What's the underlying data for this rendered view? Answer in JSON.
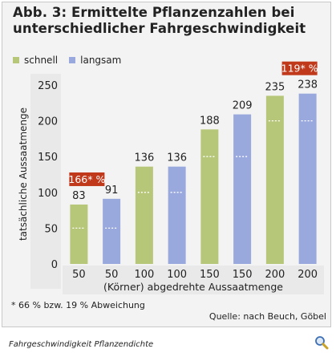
{
  "title": "Abb. 3: Ermittelte Pflanzenzahlen bei unterschiedlicher Fahrgeschwindigkeit",
  "legend": [
    {
      "label": "schnell",
      "color": "#b7c77a"
    },
    {
      "label": "langsam",
      "color": "#9aa9dd"
    }
  ],
  "footnote": "* 66 % bzw. 19 % Abweichung",
  "source": "Quelle: nach Beuch, Göbel",
  "caption": "Fahrgeschwindigkeit Pflanzendichte",
  "icons": {
    "zoom": "magnifier-icon"
  },
  "colors": {
    "frame_bg": "#f3f3f3",
    "axis_bg": "#e9e9e9",
    "annotation": "#c0391b"
  },
  "chart_data": {
    "type": "bar",
    "title": "Abb. 3: Ermittelte Pflanzenzahlen bei unterschiedlicher Fahrgeschwindigkeit",
    "xlabel": "(Körner) abgedrehte Aussaatmenge",
    "ylabel": "tatsächliche Aussaatmenge",
    "ylim": [
      0,
      250
    ],
    "yticks": [
      0,
      50,
      100,
      150,
      200,
      250
    ],
    "categories": [
      "50",
      "50",
      "100",
      "100",
      "150",
      "150",
      "200",
      "200"
    ],
    "series": [
      {
        "name": "schnell",
        "color": "#b7c77a",
        "values": [
          83,
          null,
          136,
          null,
          188,
          null,
          235,
          null
        ]
      },
      {
        "name": "langsam",
        "color": "#9aa9dd",
        "values": [
          null,
          91,
          null,
          136,
          null,
          209,
          null,
          238
        ]
      }
    ],
    "reference_level": [
      50,
      50,
      100,
      100,
      150,
      150,
      200,
      200
    ],
    "annotations": [
      {
        "text": "166* %",
        "category_index": 0
      },
      {
        "text": "119* %",
        "category_index": 7
      }
    ],
    "grid": false
  }
}
